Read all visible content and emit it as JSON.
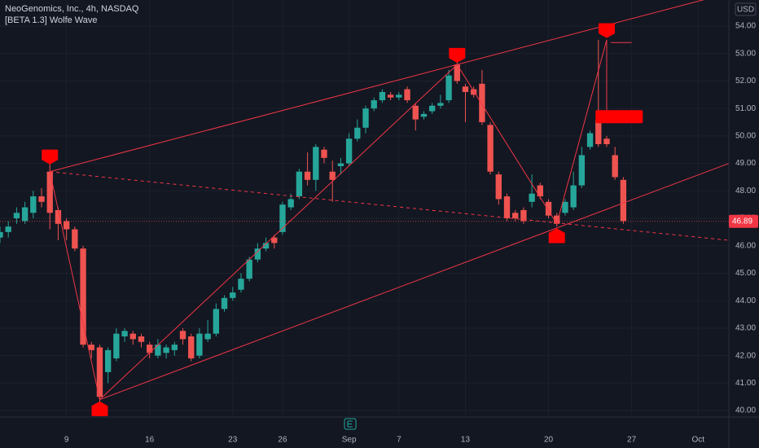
{
  "chart_data": {
    "type": "candlestick",
    "title": "NeoGenomics, Inc., 4h, NASDAQ",
    "subtitle": "[BETA 1.3] Wolfe Wave",
    "currency": "USD",
    "x": [
      -8,
      -7,
      -6,
      -5,
      -4,
      -3,
      -2,
      -1,
      0,
      1,
      2,
      3,
      4,
      5,
      6,
      7,
      8,
      9,
      10,
      11,
      12,
      13,
      14,
      15,
      16,
      17,
      18,
      19,
      20,
      21,
      22,
      23,
      24,
      25,
      26,
      27,
      28,
      29,
      30,
      31,
      32,
      33,
      34,
      35,
      36,
      37,
      38,
      39,
      40,
      41,
      42,
      43,
      44,
      45,
      46,
      47,
      48,
      49,
      50,
      51,
      52,
      53,
      54,
      55,
      56,
      57,
      58,
      59,
      60,
      61,
      62,
      63,
      64,
      65,
      66,
      67
    ],
    "open": [
      46.3,
      46.5,
      47.0,
      46.9,
      47.2,
      47.8,
      48.7,
      47.3,
      46.9,
      46.6,
      45.9,
      42.4,
      42.3,
      41.4,
      41.9,
      42.7,
      42.8,
      42.7,
      42.4,
      42.0,
      42.1,
      42.2,
      42.9,
      42.7,
      42.0,
      42.6,
      42.8,
      43.7,
      44.1,
      44.4,
      44.8,
      45.5,
      45.9,
      46.3,
      46.5,
      47.4,
      47.8,
      48.7,
      48.4,
      49.5,
      48.7,
      48.9,
      49.0,
      49.9,
      50.3,
      51.0,
      51.3,
      51.5,
      51.4,
      51.7,
      51.1,
      50.7,
      50.9,
      51.1,
      51.3,
      52.6,
      51.8,
      51.7,
      51.9,
      50.4,
      48.6,
      47.8,
      47.2,
      47.3,
      47.6,
      48.2,
      47.6,
      47.1,
      47.2,
      47.4,
      48.2,
      49.6,
      50.6,
      49.9,
      49.3,
      48.4
    ],
    "high": [
      46.7,
      46.9,
      47.4,
      47.6,
      48.0,
      48.1,
      49.0,
      47.4,
      47.0,
      46.7,
      46.0,
      42.5,
      42.4,
      42.3,
      43.0,
      43.0,
      42.9,
      42.8,
      42.5,
      42.6,
      42.4,
      42.5,
      43.0,
      42.8,
      43.0,
      43.3,
      43.9,
      44.2,
      44.5,
      45.0,
      45.6,
      46.1,
      46.3,
      46.4,
      47.6,
      47.9,
      48.8,
      49.4,
      49.7,
      49.6,
      49.1,
      49.2,
      50.1,
      50.6,
      51.1,
      51.4,
      51.7,
      51.6,
      51.6,
      51.8,
      51.2,
      50.9,
      51.2,
      51.5,
      52.4,
      52.7,
      51.9,
      51.8,
      52.4,
      50.5,
      48.7,
      47.9,
      47.3,
      47.4,
      48.6,
      48.3,
      47.7,
      47.2,
      47.7,
      48.7,
      49.6,
      50.2,
      53.5,
      50.0,
      49.6,
      48.5
    ],
    "low": [
      46.1,
      46.3,
      46.8,
      46.8,
      47.0,
      47.4,
      46.6,
      46.2,
      46.2,
      45.8,
      42.3,
      41.9,
      40.3,
      41.0,
      41.8,
      42.5,
      42.4,
      42.3,
      41.9,
      41.9,
      41.9,
      42.0,
      42.4,
      41.8,
      41.9,
      42.5,
      42.7,
      43.6,
      44.0,
      44.3,
      44.7,
      45.4,
      45.8,
      45.9,
      46.4,
      47.3,
      47.7,
      48.2,
      48.0,
      49.0,
      47.6,
      48.6,
      48.9,
      49.8,
      50.1,
      50.9,
      51.2,
      51.3,
      51.3,
      51.2,
      50.2,
      50.6,
      50.8,
      51.0,
      51.2,
      51.9,
      50.5,
      51.4,
      50.4,
      48.6,
      47.5,
      46.9,
      46.9,
      46.8,
      47.4,
      47.7,
      47.0,
      46.7,
      47.1,
      47.3,
      48.1,
      49.5,
      49.6,
      49.6,
      48.4,
      46.8
    ],
    "close": [
      46.5,
      46.7,
      47.2,
      47.4,
      47.8,
      47.6,
      47.2,
      46.8,
      46.6,
      45.9,
      42.4,
      42.2,
      40.5,
      42.2,
      42.8,
      42.9,
      42.6,
      42.5,
      42.1,
      42.4,
      42.3,
      42.4,
      42.6,
      41.9,
      42.8,
      42.8,
      43.7,
      44.1,
      44.3,
      44.8,
      45.5,
      45.9,
      46.1,
      46.1,
      47.5,
      47.7,
      48.7,
      48.4,
      49.6,
      49.2,
      48.4,
      49.0,
      49.9,
      50.3,
      51.0,
      51.3,
      51.6,
      51.4,
      51.5,
      51.3,
      50.6,
      50.8,
      51.1,
      51.2,
      52.2,
      52.0,
      51.6,
      51.5,
      50.5,
      48.7,
      47.7,
      47.0,
      47.0,
      46.9,
      47.9,
      47.8,
      47.1,
      46.8,
      47.6,
      48.2,
      49.3,
      50.1,
      49.7,
      49.7,
      48.5,
      46.9
    ],
    "up_color": "#26a69a",
    "down_color": "#ef5350",
    "xlim": [
      -8,
      79.7
    ],
    "ylim": [
      39.23,
      54.95
    ],
    "xticks": [
      {
        "value": 0,
        "label": "9"
      },
      {
        "value": 10,
        "label": "16"
      },
      {
        "value": 20,
        "label": "23"
      },
      {
        "value": 26,
        "label": "26"
      },
      {
        "value": 34,
        "label": "Sep"
      },
      {
        "value": 40,
        "label": "7"
      },
      {
        "value": 48,
        "label": "13"
      },
      {
        "value": 58,
        "label": "20"
      },
      {
        "value": 68,
        "label": "27"
      },
      {
        "value": 76,
        "label": "Oct"
      }
    ],
    "yticks": [
      {
        "value": 40,
        "label": "40.00"
      },
      {
        "value": 41,
        "label": "41.00"
      },
      {
        "value": 42,
        "label": "42.00"
      },
      {
        "value": 43,
        "label": "43.00"
      },
      {
        "value": 44,
        "label": "44.00"
      },
      {
        "value": 45,
        "label": "45.00"
      },
      {
        "value": 46,
        "label": "46.00"
      },
      {
        "value": 47,
        "label": "47.00"
      },
      {
        "value": 48,
        "label": "48.00"
      },
      {
        "value": 49,
        "label": "49.00"
      },
      {
        "value": 50,
        "label": "50.00"
      },
      {
        "value": 51,
        "label": "51.00"
      },
      {
        "value": 52,
        "label": "52.00"
      },
      {
        "value": 53,
        "label": "53.00"
      },
      {
        "value": 54,
        "label": "54.00"
      }
    ],
    "last_price": {
      "value": 46.89,
      "label": "46.89"
    },
    "pattern_color": "#f23645",
    "lines": [
      {
        "style": "solid",
        "x": [
          -2,
          79.7
        ],
        "y": [
          48.7,
          55.2
        ]
      },
      {
        "style": "solid",
        "x": [
          4,
          79.7
        ],
        "y": [
          40.4,
          49.0
        ]
      },
      {
        "style": "dashed",
        "x": [
          -2,
          79.7
        ],
        "y": [
          48.7,
          46.2
        ]
      },
      {
        "style": "solid",
        "x": [
          -2,
          4,
          47,
          59,
          65,
          65
        ],
        "y": [
          48.7,
          40.4,
          52.6,
          46.8,
          53.5,
          50.7
        ]
      },
      {
        "style": "solid",
        "x": [
          65.5,
          68
        ],
        "y": [
          53.4,
          53.4
        ]
      }
    ],
    "markers": [
      {
        "x": -2,
        "y": 49.0,
        "position": "above"
      },
      {
        "x": 4,
        "y": 40.3,
        "position": "below"
      },
      {
        "x": 47,
        "y": 52.7,
        "position": "above"
      },
      {
        "x": 59,
        "y": 46.6,
        "position": "below"
      },
      {
        "x": 65,
        "y": 53.6,
        "position": "above"
      }
    ],
    "signal": {
      "x": 66.5,
      "y": 50.7
    }
  }
}
